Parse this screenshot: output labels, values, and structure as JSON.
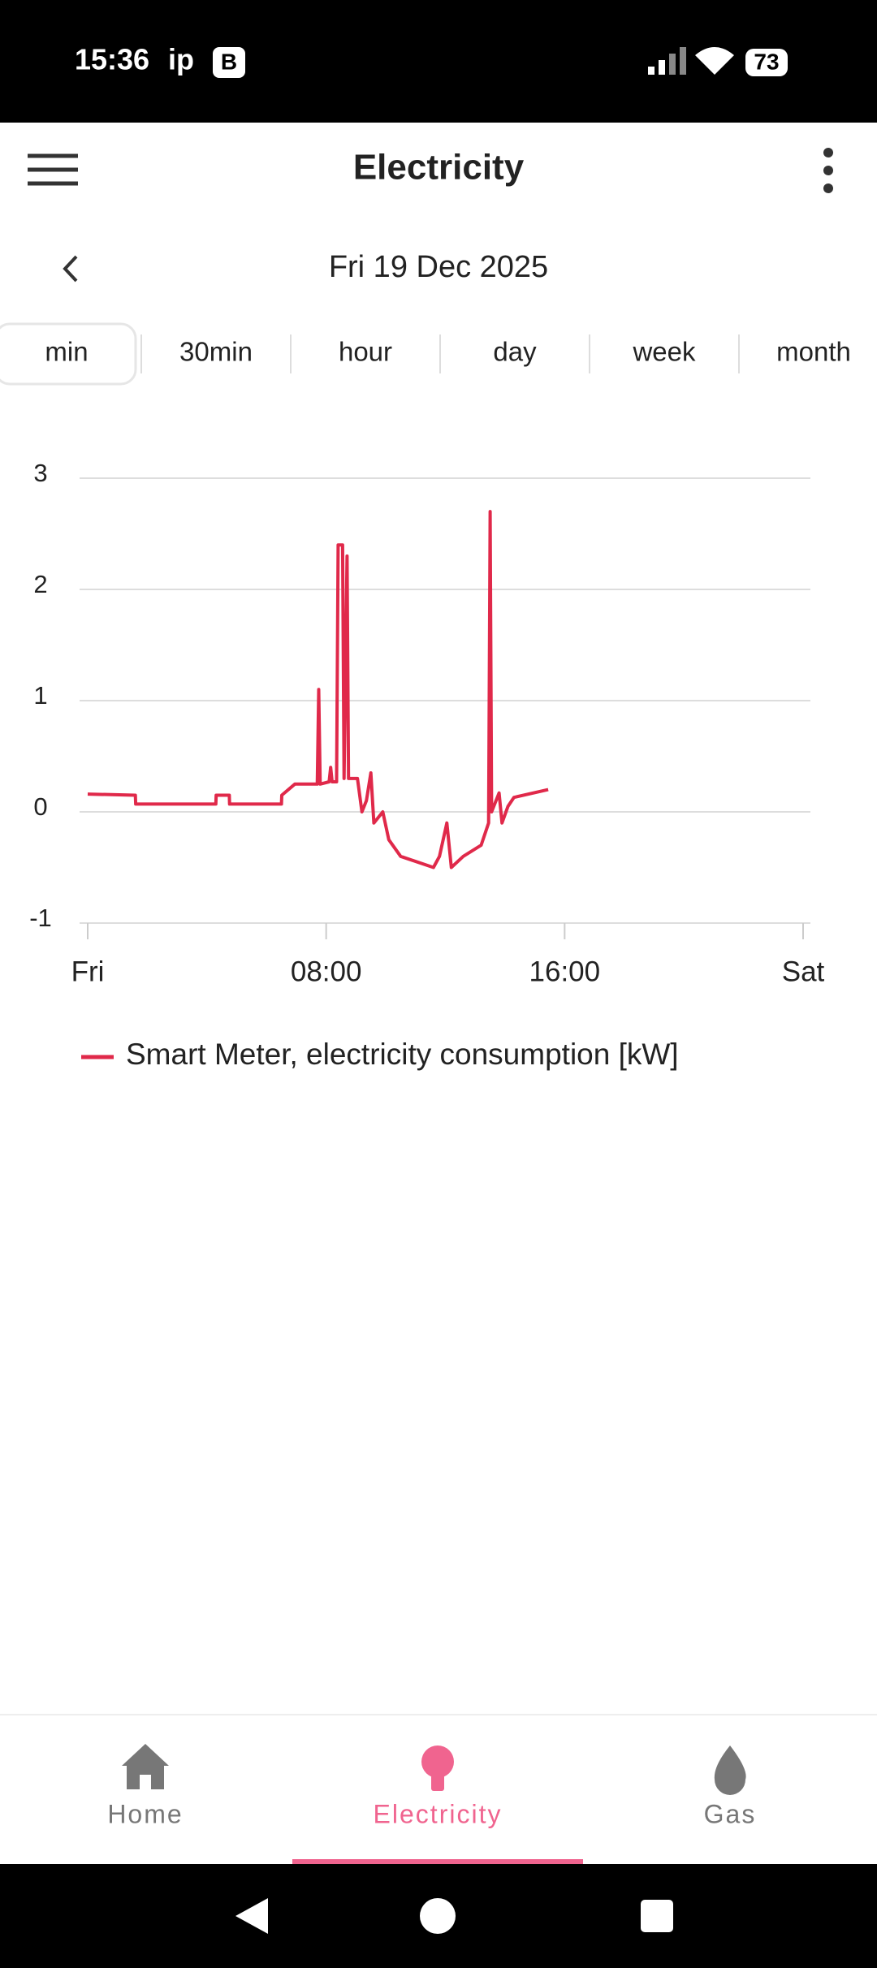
{
  "status_bar": {
    "time": "15:36",
    "carrier": "ip",
    "badge": "B",
    "battery": "73"
  },
  "header": {
    "title": "Electricity"
  },
  "date_nav": {
    "date": "Fri 19 Dec 2025"
  },
  "tabs": [
    "min",
    "30min",
    "hour",
    "day",
    "week",
    "month"
  ],
  "chart_data": {
    "type": "line",
    "x": [
      0,
      1.6,
      1.61,
      4.3,
      4.31,
      4.75,
      4.76,
      6.5,
      6.51,
      6.95,
      7.7,
      7.75,
      7.8,
      8.1,
      8.15,
      8.2,
      8.35,
      8.4,
      8.55,
      8.6,
      8.7,
      8.75,
      9.05,
      9.2,
      9.35,
      9.5,
      9.6,
      9.9,
      10.1,
      10.5,
      11.6,
      11.8,
      12.05,
      12.2,
      12.6,
      13.2,
      13.45,
      13.5,
      13.55,
      13.8,
      13.9,
      14.1,
      14.3,
      15.45
    ],
    "series": [
      {
        "name": "Smart Meter, electricity consumption [kW]",
        "color": "#e0294a",
        "values": [
          0.16,
          0.15,
          0.07,
          0.07,
          0.15,
          0.15,
          0.07,
          0.07,
          0.15,
          0.25,
          0.25,
          1.1,
          0.25,
          0.27,
          0.4,
          0.27,
          0.27,
          2.4,
          2.4,
          0.3,
          2.3,
          0.3,
          0.3,
          0.0,
          0.1,
          0.35,
          -0.1,
          0.0,
          -0.25,
          -0.4,
          -0.5,
          -0.4,
          -0.1,
          -0.5,
          -0.4,
          -0.3,
          -0.1,
          2.7,
          0.0,
          0.17,
          -0.1,
          0.05,
          0.13,
          0.2
        ]
      }
    ],
    "xlim": [
      0,
      24
    ],
    "xticks": [
      {
        "value": 0,
        "label": "Fri"
      },
      {
        "value": 8,
        "label": "08:00"
      },
      {
        "value": 16,
        "label": "16:00"
      },
      {
        "value": 24,
        "label": "Sat"
      }
    ],
    "ylim": [
      -1,
      3
    ],
    "yticks": [
      -1,
      0,
      1,
      2,
      3
    ],
    "grid": true
  },
  "bottom_nav": {
    "items": [
      "Home",
      "Electricity",
      "Gas"
    ]
  }
}
